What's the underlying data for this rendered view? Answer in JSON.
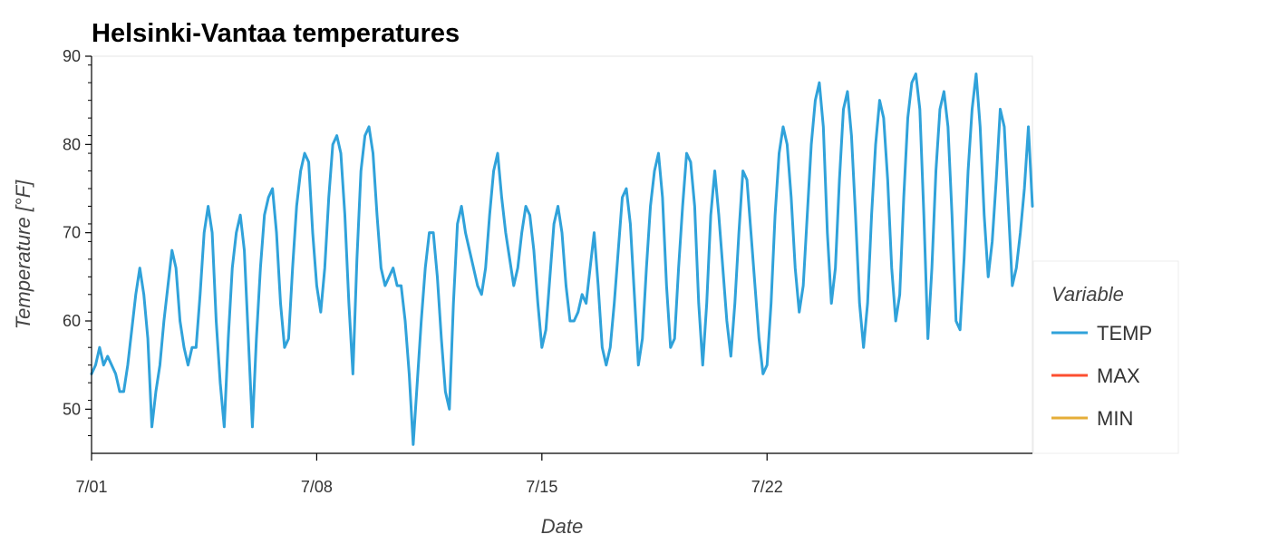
{
  "chart_data": {
    "type": "line",
    "title": "Helsinki-Vantaa temperatures",
    "xlabel": "Date",
    "ylabel": "Temperature [°F]",
    "x_type": "datetime",
    "x_range": [
      "2023-07-01",
      "2023-07-30T06:00"
    ],
    "x_ticks": [
      {
        "value": "2023-07-01",
        "label": "7/01"
      },
      {
        "value": "2023-07-08",
        "label": "7/08"
      },
      {
        "value": "2023-07-15",
        "label": "7/15"
      },
      {
        "value": "2023-07-22",
        "label": "7/22"
      }
    ],
    "ylim": [
      45,
      90
    ],
    "y_ticks": [
      50,
      60,
      70,
      80,
      90
    ],
    "grid": false,
    "legend": {
      "title": "Variable",
      "placement": "right",
      "entries": [
        {
          "name": "TEMP",
          "color": "#30a2da"
        },
        {
          "name": "MAX",
          "color": "#fc4f30"
        },
        {
          "name": "MIN",
          "color": "#e5ae38"
        }
      ]
    },
    "series": [
      {
        "name": "TEMP",
        "color": "#30a2da",
        "points": [
          [
            "2023-07-01T00:00",
            54
          ],
          [
            "2023-07-01T03:00",
            55
          ],
          [
            "2023-07-01T06:00",
            57
          ],
          [
            "2023-07-01T09:00",
            55
          ],
          [
            "2023-07-01T12:00",
            56
          ],
          [
            "2023-07-01T15:00",
            55
          ],
          [
            "2023-07-01T18:00",
            54
          ],
          [
            "2023-07-01T21:00",
            52
          ],
          [
            "2023-07-02T00:00",
            52
          ],
          [
            "2023-07-02T03:00",
            55
          ],
          [
            "2023-07-02T06:00",
            59
          ],
          [
            "2023-07-02T09:00",
            63
          ],
          [
            "2023-07-02T12:00",
            66
          ],
          [
            "2023-07-02T15:00",
            63
          ],
          [
            "2023-07-02T18:00",
            58
          ],
          [
            "2023-07-02T21:00",
            48
          ],
          [
            "2023-07-03T00:00",
            52
          ],
          [
            "2023-07-03T03:00",
            55
          ],
          [
            "2023-07-03T06:00",
            60
          ],
          [
            "2023-07-03T09:00",
            64
          ],
          [
            "2023-07-03T12:00",
            68
          ],
          [
            "2023-07-03T15:00",
            66
          ],
          [
            "2023-07-03T18:00",
            60
          ],
          [
            "2023-07-03T21:00",
            57
          ],
          [
            "2023-07-04T00:00",
            55
          ],
          [
            "2023-07-04T03:00",
            57
          ],
          [
            "2023-07-04T06:00",
            57
          ],
          [
            "2023-07-04T09:00",
            63
          ],
          [
            "2023-07-04T12:00",
            70
          ],
          [
            "2023-07-04T15:00",
            73
          ],
          [
            "2023-07-04T18:00",
            70
          ],
          [
            "2023-07-04T21:00",
            60
          ],
          [
            "2023-07-05T00:00",
            53
          ],
          [
            "2023-07-05T03:00",
            48
          ],
          [
            "2023-07-05T06:00",
            58
          ],
          [
            "2023-07-05T09:00",
            66
          ],
          [
            "2023-07-05T12:00",
            70
          ],
          [
            "2023-07-05T15:00",
            72
          ],
          [
            "2023-07-05T18:00",
            68
          ],
          [
            "2023-07-05T21:00",
            58
          ],
          [
            "2023-07-06T00:00",
            48
          ],
          [
            "2023-07-06T03:00",
            58
          ],
          [
            "2023-07-06T06:00",
            66
          ],
          [
            "2023-07-06T09:00",
            72
          ],
          [
            "2023-07-06T12:00",
            74
          ],
          [
            "2023-07-06T15:00",
            75
          ],
          [
            "2023-07-06T18:00",
            70
          ],
          [
            "2023-07-06T21:00",
            62
          ],
          [
            "2023-07-07T00:00",
            57
          ],
          [
            "2023-07-07T03:00",
            58
          ],
          [
            "2023-07-07T06:00",
            66
          ],
          [
            "2023-07-07T09:00",
            73
          ],
          [
            "2023-07-07T12:00",
            77
          ],
          [
            "2023-07-07T15:00",
            79
          ],
          [
            "2023-07-07T18:00",
            78
          ],
          [
            "2023-07-07T21:00",
            70
          ],
          [
            "2023-07-08T00:00",
            64
          ],
          [
            "2023-07-08T03:00",
            61
          ],
          [
            "2023-07-08T06:00",
            66
          ],
          [
            "2023-07-08T09:00",
            74
          ],
          [
            "2023-07-08T12:00",
            80
          ],
          [
            "2023-07-08T15:00",
            81
          ],
          [
            "2023-07-08T18:00",
            79
          ],
          [
            "2023-07-08T21:00",
            72
          ],
          [
            "2023-07-09T00:00",
            62
          ],
          [
            "2023-07-09T03:00",
            54
          ],
          [
            "2023-07-09T06:00",
            67
          ],
          [
            "2023-07-09T09:00",
            77
          ],
          [
            "2023-07-09T12:00",
            81
          ],
          [
            "2023-07-09T15:00",
            82
          ],
          [
            "2023-07-09T18:00",
            79
          ],
          [
            "2023-07-09T21:00",
            72
          ],
          [
            "2023-07-10T00:00",
            66
          ],
          [
            "2023-07-10T03:00",
            64
          ],
          [
            "2023-07-10T06:00",
            65
          ],
          [
            "2023-07-10T09:00",
            66
          ],
          [
            "2023-07-10T12:00",
            64
          ],
          [
            "2023-07-10T15:00",
            64
          ],
          [
            "2023-07-10T18:00",
            60
          ],
          [
            "2023-07-10T21:00",
            54
          ],
          [
            "2023-07-11T00:00",
            46
          ],
          [
            "2023-07-11T03:00",
            53
          ],
          [
            "2023-07-11T06:00",
            60
          ],
          [
            "2023-07-11T09:00",
            66
          ],
          [
            "2023-07-11T12:00",
            70
          ],
          [
            "2023-07-11T15:00",
            70
          ],
          [
            "2023-07-11T18:00",
            65
          ],
          [
            "2023-07-11T21:00",
            58
          ],
          [
            "2023-07-12T00:00",
            52
          ],
          [
            "2023-07-12T03:00",
            50
          ],
          [
            "2023-07-12T06:00",
            62
          ],
          [
            "2023-07-12T09:00",
            71
          ],
          [
            "2023-07-12T12:00",
            73
          ],
          [
            "2023-07-12T15:00",
            70
          ],
          [
            "2023-07-12T18:00",
            68
          ],
          [
            "2023-07-12T21:00",
            66
          ],
          [
            "2023-07-13T00:00",
            64
          ],
          [
            "2023-07-13T03:00",
            63
          ],
          [
            "2023-07-13T06:00",
            66
          ],
          [
            "2023-07-13T09:00",
            72
          ],
          [
            "2023-07-13T12:00",
            77
          ],
          [
            "2023-07-13T15:00",
            79
          ],
          [
            "2023-07-13T18:00",
            74
          ],
          [
            "2023-07-13T21:00",
            70
          ],
          [
            "2023-07-14T00:00",
            67
          ],
          [
            "2023-07-14T03:00",
            64
          ],
          [
            "2023-07-14T06:00",
            66
          ],
          [
            "2023-07-14T09:00",
            70
          ],
          [
            "2023-07-14T12:00",
            73
          ],
          [
            "2023-07-14T15:00",
            72
          ],
          [
            "2023-07-14T18:00",
            68
          ],
          [
            "2023-07-14T21:00",
            62
          ],
          [
            "2023-07-15T00:00",
            57
          ],
          [
            "2023-07-15T03:00",
            59
          ],
          [
            "2023-07-15T06:00",
            65
          ],
          [
            "2023-07-15T09:00",
            71
          ],
          [
            "2023-07-15T12:00",
            73
          ],
          [
            "2023-07-15T15:00",
            70
          ],
          [
            "2023-07-15T18:00",
            64
          ],
          [
            "2023-07-15T21:00",
            60
          ],
          [
            "2023-07-16T00:00",
            60
          ],
          [
            "2023-07-16T03:00",
            61
          ],
          [
            "2023-07-16T06:00",
            63
          ],
          [
            "2023-07-16T09:00",
            62
          ],
          [
            "2023-07-16T12:00",
            66
          ],
          [
            "2023-07-16T15:00",
            70
          ],
          [
            "2023-07-16T18:00",
            64
          ],
          [
            "2023-07-16T21:00",
            57
          ],
          [
            "2023-07-17T00:00",
            55
          ],
          [
            "2023-07-17T03:00",
            57
          ],
          [
            "2023-07-17T06:00",
            62
          ],
          [
            "2023-07-17T09:00",
            68
          ],
          [
            "2023-07-17T12:00",
            74
          ],
          [
            "2023-07-17T15:00",
            75
          ],
          [
            "2023-07-17T18:00",
            71
          ],
          [
            "2023-07-17T21:00",
            63
          ],
          [
            "2023-07-18T00:00",
            55
          ],
          [
            "2023-07-18T03:00",
            58
          ],
          [
            "2023-07-18T06:00",
            66
          ],
          [
            "2023-07-18T09:00",
            73
          ],
          [
            "2023-07-18T12:00",
            77
          ],
          [
            "2023-07-18T15:00",
            79
          ],
          [
            "2023-07-18T18:00",
            74
          ],
          [
            "2023-07-18T21:00",
            64
          ],
          [
            "2023-07-19T00:00",
            57
          ],
          [
            "2023-07-19T03:00",
            58
          ],
          [
            "2023-07-19T06:00",
            66
          ],
          [
            "2023-07-19T09:00",
            73
          ],
          [
            "2023-07-19T12:00",
            79
          ],
          [
            "2023-07-19T15:00",
            78
          ],
          [
            "2023-07-19T18:00",
            73
          ],
          [
            "2023-07-19T21:00",
            62
          ],
          [
            "2023-07-20T00:00",
            55
          ],
          [
            "2023-07-20T03:00",
            62
          ],
          [
            "2023-07-20T06:00",
            72
          ],
          [
            "2023-07-20T09:00",
            77
          ],
          [
            "2023-07-20T12:00",
            72
          ],
          [
            "2023-07-20T15:00",
            66
          ],
          [
            "2023-07-20T18:00",
            60
          ],
          [
            "2023-07-20T21:00",
            56
          ],
          [
            "2023-07-21T00:00",
            62
          ],
          [
            "2023-07-21T03:00",
            70
          ],
          [
            "2023-07-21T06:00",
            77
          ],
          [
            "2023-07-21T09:00",
            76
          ],
          [
            "2023-07-21T12:00",
            70
          ],
          [
            "2023-07-21T15:00",
            64
          ],
          [
            "2023-07-21T18:00",
            58
          ],
          [
            "2023-07-21T21:00",
            54
          ],
          [
            "2023-07-22T00:00",
            55
          ],
          [
            "2023-07-22T03:00",
            62
          ],
          [
            "2023-07-22T06:00",
            72
          ],
          [
            "2023-07-22T09:00",
            79
          ],
          [
            "2023-07-22T12:00",
            82
          ],
          [
            "2023-07-22T15:00",
            80
          ],
          [
            "2023-07-22T18:00",
            74
          ],
          [
            "2023-07-22T21:00",
            66
          ],
          [
            "2023-07-23T00:00",
            61
          ],
          [
            "2023-07-23T03:00",
            64
          ],
          [
            "2023-07-23T06:00",
            72
          ],
          [
            "2023-07-23T09:00",
            80
          ],
          [
            "2023-07-23T12:00",
            85
          ],
          [
            "2023-07-23T15:00",
            87
          ],
          [
            "2023-07-23T18:00",
            82
          ],
          [
            "2023-07-23T21:00",
            70
          ],
          [
            "2023-07-24T00:00",
            62
          ],
          [
            "2023-07-24T03:00",
            66
          ],
          [
            "2023-07-24T06:00",
            76
          ],
          [
            "2023-07-24T09:00",
            84
          ],
          [
            "2023-07-24T12:00",
            86
          ],
          [
            "2023-07-24T15:00",
            81
          ],
          [
            "2023-07-24T18:00",
            72
          ],
          [
            "2023-07-24T21:00",
            62
          ],
          [
            "2023-07-25T00:00",
            57
          ],
          [
            "2023-07-25T03:00",
            62
          ],
          [
            "2023-07-25T06:00",
            72
          ],
          [
            "2023-07-25T09:00",
            80
          ],
          [
            "2023-07-25T12:00",
            85
          ],
          [
            "2023-07-25T15:00",
            83
          ],
          [
            "2023-07-25T18:00",
            76
          ],
          [
            "2023-07-25T21:00",
            66
          ],
          [
            "2023-07-26T00:00",
            60
          ],
          [
            "2023-07-26T03:00",
            63
          ],
          [
            "2023-07-26T06:00",
            74
          ],
          [
            "2023-07-26T09:00",
            83
          ],
          [
            "2023-07-26T12:00",
            87
          ],
          [
            "2023-07-26T15:00",
            88
          ],
          [
            "2023-07-26T18:00",
            84
          ],
          [
            "2023-07-26T21:00",
            72
          ],
          [
            "2023-07-27T00:00",
            58
          ],
          [
            "2023-07-27T03:00",
            66
          ],
          [
            "2023-07-27T06:00",
            77
          ],
          [
            "2023-07-27T09:00",
            84
          ],
          [
            "2023-07-27T12:00",
            86
          ],
          [
            "2023-07-27T15:00",
            82
          ],
          [
            "2023-07-27T18:00",
            72
          ],
          [
            "2023-07-27T21:00",
            60
          ],
          [
            "2023-07-28T00:00",
            59
          ],
          [
            "2023-07-28T03:00",
            67
          ],
          [
            "2023-07-28T06:00",
            77
          ],
          [
            "2023-07-28T09:00",
            84
          ],
          [
            "2023-07-28T12:00",
            88
          ],
          [
            "2023-07-28T15:00",
            82
          ],
          [
            "2023-07-28T18:00",
            72
          ],
          [
            "2023-07-28T21:00",
            65
          ],
          [
            "2023-07-29T00:00",
            69
          ],
          [
            "2023-07-29T03:00",
            76
          ],
          [
            "2023-07-29T06:00",
            84
          ],
          [
            "2023-07-29T09:00",
            82
          ],
          [
            "2023-07-29T12:00",
            73
          ],
          [
            "2023-07-29T15:00",
            64
          ],
          [
            "2023-07-29T18:00",
            66
          ],
          [
            "2023-07-29T21:00",
            70
          ],
          [
            "2023-07-30T00:00",
            75
          ],
          [
            "2023-07-30T03:00",
            82
          ],
          [
            "2023-07-30T06:00",
            73
          ]
        ]
      },
      {
        "name": "MAX",
        "color": "#fc4f30",
        "points": []
      },
      {
        "name": "MIN",
        "color": "#e5ae38",
        "points": []
      }
    ]
  }
}
